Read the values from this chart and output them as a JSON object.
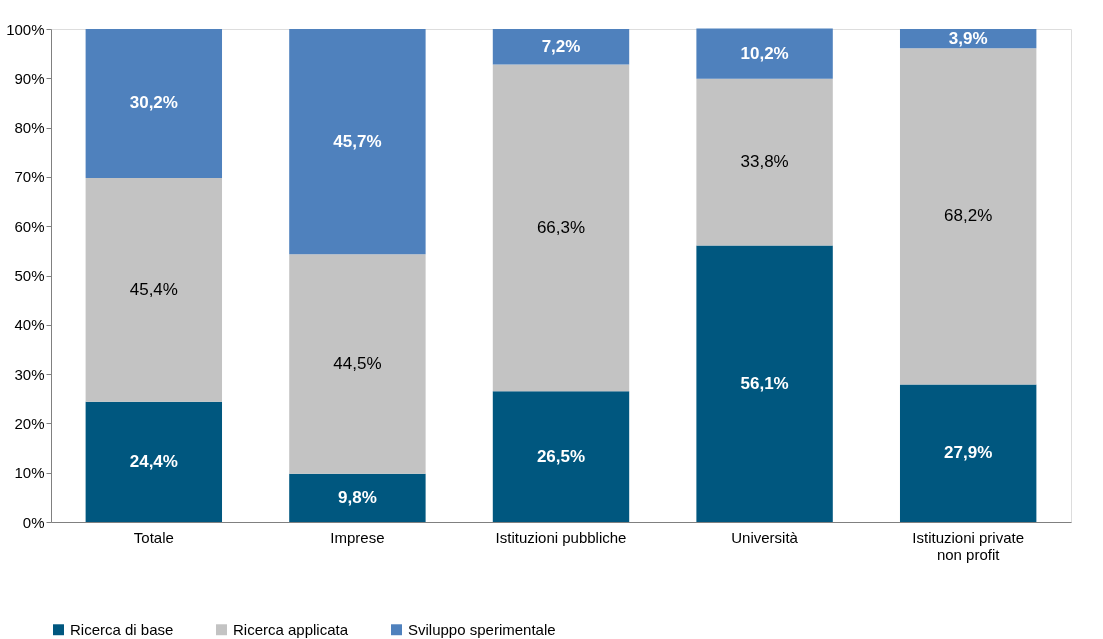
{
  "chart_data": {
    "type": "bar",
    "stacked": true,
    "categories": [
      "Totale",
      "Imprese",
      "Istituzioni pubbliche",
      "Università",
      "Istituzioni private non profit"
    ],
    "series": [
      {
        "name": "Ricerca di base",
        "color": "#00577f",
        "values": [
          24.4,
          9.8,
          26.5,
          56.1,
          27.9
        ],
        "value_labels": [
          "24,4%",
          "9,8%",
          "26,5%",
          "56,1%",
          "27,9%"
        ]
      },
      {
        "name": "Ricerca applicata",
        "color": "#c3c3c3",
        "values": [
          45.4,
          44.5,
          66.3,
          33.8,
          68.2
        ],
        "value_labels": [
          "45,4%",
          "44,5%",
          "66,3%",
          "33,8%",
          "68,2%"
        ]
      },
      {
        "name": "Sviluppo sperimentale",
        "color": "#4f81bd",
        "values": [
          30.2,
          45.7,
          7.2,
          10.2,
          3.9
        ],
        "value_labels": [
          "30,2%",
          "45,7%",
          "7,2%",
          "10,2%",
          "3,9%"
        ]
      }
    ],
    "ylim": [
      0,
      100
    ],
    "yticks": [
      {
        "value": 0,
        "label": "0%"
      },
      {
        "value": 10,
        "label": "10%"
      },
      {
        "value": 20,
        "label": "20%"
      },
      {
        "value": 30,
        "label": "30%"
      },
      {
        "value": 40,
        "label": "40%"
      },
      {
        "value": 50,
        "label": "50%"
      },
      {
        "value": 60,
        "label": "60%"
      },
      {
        "value": 70,
        "label": "70%"
      },
      {
        "value": 80,
        "label": "80%"
      },
      {
        "value": 90,
        "label": "90%"
      },
      {
        "value": 100,
        "label": "100%"
      }
    ],
    "grid": false,
    "legend": "bottom"
  }
}
